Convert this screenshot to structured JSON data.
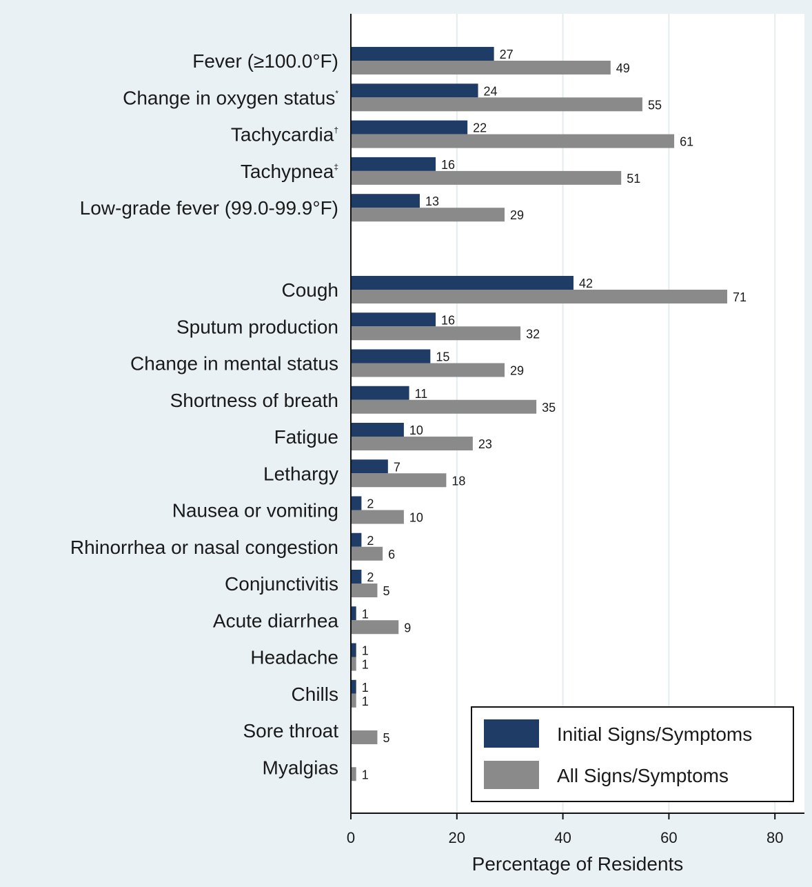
{
  "chart_data": {
    "type": "bar",
    "orientation": "horizontal",
    "xlabel": "Percentage of Residents",
    "xlim": [
      0,
      85
    ],
    "xticks": [
      0,
      20,
      40,
      60,
      80
    ],
    "grid": true,
    "legend_position": "bottom-right",
    "categories": [
      {
        "label": "Fever (≥100.0°F)",
        "sup": ""
      },
      {
        "label": "Change in oxygen status",
        "sup": "*"
      },
      {
        "label": "Tachycardia",
        "sup": "†"
      },
      {
        "label": "Tachypnea",
        "sup": "‡"
      },
      {
        "label": "Low-grade fever (99.0-99.9°F)",
        "sup": ""
      },
      {
        "label": "Cough",
        "sup": ""
      },
      {
        "label": "Sputum production",
        "sup": ""
      },
      {
        "label": "Change in mental status",
        "sup": ""
      },
      {
        "label": "Shortness of breath",
        "sup": ""
      },
      {
        "label": "Fatigue",
        "sup": ""
      },
      {
        "label": "Lethargy",
        "sup": ""
      },
      {
        "label": "Nausea or vomiting",
        "sup": ""
      },
      {
        "label": "Rhinorrhea or nasal congestion",
        "sup": ""
      },
      {
        "label": "Conjunctivitis",
        "sup": ""
      },
      {
        "label": "Acute diarrhea",
        "sup": ""
      },
      {
        "label": "Headache",
        "sup": ""
      },
      {
        "label": "Chills",
        "sup": ""
      },
      {
        "label": "Sore throat",
        "sup": ""
      },
      {
        "label": "Myalgias",
        "sup": ""
      }
    ],
    "series": [
      {
        "name": "Initial Signs/Symptoms",
        "color": "#1f3c66",
        "values": [
          27,
          24,
          22,
          16,
          13,
          42,
          16,
          15,
          11,
          10,
          7,
          2,
          2,
          2,
          1,
          1,
          1,
          null,
          null
        ]
      },
      {
        "name": "All Signs/Symptoms",
        "color": "#8a8a8a",
        "values": [
          49,
          55,
          61,
          51,
          29,
          71,
          32,
          29,
          35,
          23,
          18,
          10,
          6,
          5,
          9,
          1,
          1,
          5,
          1
        ]
      }
    ]
  },
  "colors": {
    "background": "#e9f1f4",
    "plot_background": "#ffffff",
    "grid": "#e3ecef"
  }
}
